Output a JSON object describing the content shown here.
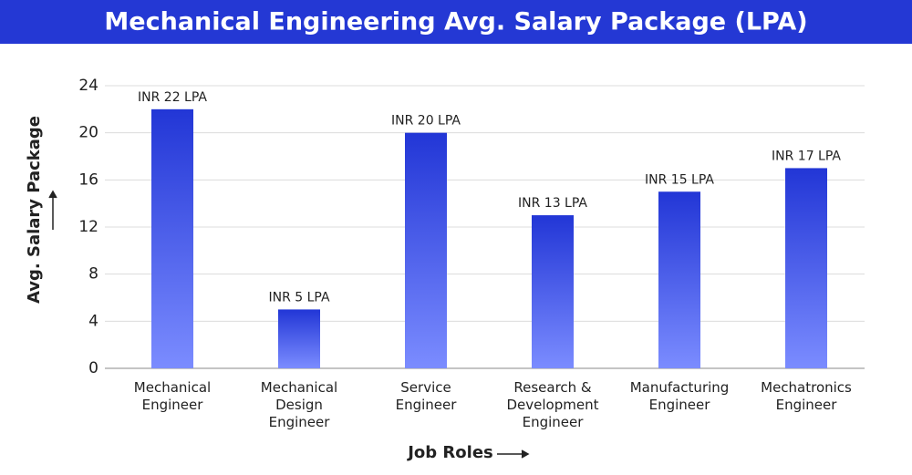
{
  "chart_data": {
    "type": "bar",
    "title": "Mechanical Engineering Avg. Salary Package (LPA)",
    "y_label": "Avg. Salary Package",
    "x_label": "Job Roles",
    "categories": [
      "Mechanical\nEngineer",
      "Mechanical\nDesign\nEngineer",
      "Service\nEngineer",
      "Research &\nDevelopment\nEngineer",
      "Manufacturing\nEngineer",
      "Mechatronics\nEngineer"
    ],
    "values": [
      22,
      5,
      20,
      13,
      15,
      17
    ],
    "value_labels": [
      "INR 22 LPA",
      "INR 5 LPA",
      "INR 20 LPA",
      "INR 13 LPA",
      "INR 15 LPA",
      "INR 17 LPA"
    ],
    "color": [
      "#2236d6",
      "#7b8cff"
    ],
    "ylim": [
      0,
      24
    ],
    "yticks": [
      0,
      4,
      8,
      12,
      16,
      20,
      24
    ],
    "grid": true
  }
}
